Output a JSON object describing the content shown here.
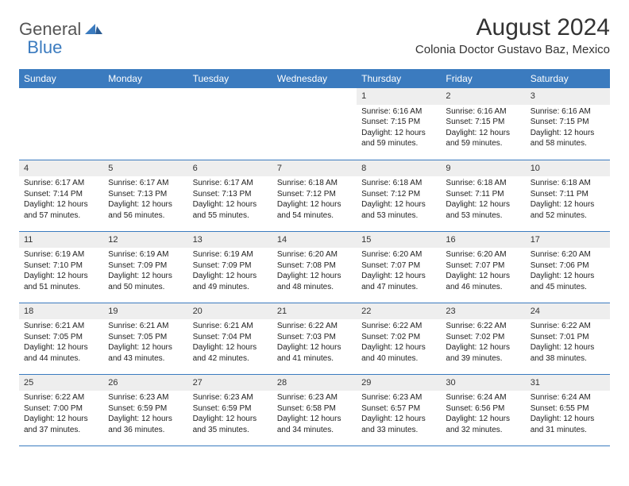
{
  "brand": {
    "general": "General",
    "blue": "Blue"
  },
  "title": "August 2024",
  "location": "Colonia Doctor Gustavo Baz, Mexico",
  "colors": {
    "header_bg": "#3b7bbf",
    "header_text": "#ffffff",
    "daynum_bg": "#eeeeee",
    "rule": "#3b7bbf",
    "logo_gray": "#555555",
    "logo_blue": "#3b7bbf"
  },
  "day_headers": [
    "Sunday",
    "Monday",
    "Tuesday",
    "Wednesday",
    "Thursday",
    "Friday",
    "Saturday"
  ],
  "weeks": [
    [
      {
        "n": "",
        "sr": "",
        "ss": "",
        "dl": ""
      },
      {
        "n": "",
        "sr": "",
        "ss": "",
        "dl": ""
      },
      {
        "n": "",
        "sr": "",
        "ss": "",
        "dl": ""
      },
      {
        "n": "",
        "sr": "",
        "ss": "",
        "dl": ""
      },
      {
        "n": "1",
        "sr": "Sunrise: 6:16 AM",
        "ss": "Sunset: 7:15 PM",
        "dl": "Daylight: 12 hours and 59 minutes."
      },
      {
        "n": "2",
        "sr": "Sunrise: 6:16 AM",
        "ss": "Sunset: 7:15 PM",
        "dl": "Daylight: 12 hours and 59 minutes."
      },
      {
        "n": "3",
        "sr": "Sunrise: 6:16 AM",
        "ss": "Sunset: 7:15 PM",
        "dl": "Daylight: 12 hours and 58 minutes."
      }
    ],
    [
      {
        "n": "4",
        "sr": "Sunrise: 6:17 AM",
        "ss": "Sunset: 7:14 PM",
        "dl": "Daylight: 12 hours and 57 minutes."
      },
      {
        "n": "5",
        "sr": "Sunrise: 6:17 AM",
        "ss": "Sunset: 7:13 PM",
        "dl": "Daylight: 12 hours and 56 minutes."
      },
      {
        "n": "6",
        "sr": "Sunrise: 6:17 AM",
        "ss": "Sunset: 7:13 PM",
        "dl": "Daylight: 12 hours and 55 minutes."
      },
      {
        "n": "7",
        "sr": "Sunrise: 6:18 AM",
        "ss": "Sunset: 7:12 PM",
        "dl": "Daylight: 12 hours and 54 minutes."
      },
      {
        "n": "8",
        "sr": "Sunrise: 6:18 AM",
        "ss": "Sunset: 7:12 PM",
        "dl": "Daylight: 12 hours and 53 minutes."
      },
      {
        "n": "9",
        "sr": "Sunrise: 6:18 AM",
        "ss": "Sunset: 7:11 PM",
        "dl": "Daylight: 12 hours and 53 minutes."
      },
      {
        "n": "10",
        "sr": "Sunrise: 6:18 AM",
        "ss": "Sunset: 7:11 PM",
        "dl": "Daylight: 12 hours and 52 minutes."
      }
    ],
    [
      {
        "n": "11",
        "sr": "Sunrise: 6:19 AM",
        "ss": "Sunset: 7:10 PM",
        "dl": "Daylight: 12 hours and 51 minutes."
      },
      {
        "n": "12",
        "sr": "Sunrise: 6:19 AM",
        "ss": "Sunset: 7:09 PM",
        "dl": "Daylight: 12 hours and 50 minutes."
      },
      {
        "n": "13",
        "sr": "Sunrise: 6:19 AM",
        "ss": "Sunset: 7:09 PM",
        "dl": "Daylight: 12 hours and 49 minutes."
      },
      {
        "n": "14",
        "sr": "Sunrise: 6:20 AM",
        "ss": "Sunset: 7:08 PM",
        "dl": "Daylight: 12 hours and 48 minutes."
      },
      {
        "n": "15",
        "sr": "Sunrise: 6:20 AM",
        "ss": "Sunset: 7:07 PM",
        "dl": "Daylight: 12 hours and 47 minutes."
      },
      {
        "n": "16",
        "sr": "Sunrise: 6:20 AM",
        "ss": "Sunset: 7:07 PM",
        "dl": "Daylight: 12 hours and 46 minutes."
      },
      {
        "n": "17",
        "sr": "Sunrise: 6:20 AM",
        "ss": "Sunset: 7:06 PM",
        "dl": "Daylight: 12 hours and 45 minutes."
      }
    ],
    [
      {
        "n": "18",
        "sr": "Sunrise: 6:21 AM",
        "ss": "Sunset: 7:05 PM",
        "dl": "Daylight: 12 hours and 44 minutes."
      },
      {
        "n": "19",
        "sr": "Sunrise: 6:21 AM",
        "ss": "Sunset: 7:05 PM",
        "dl": "Daylight: 12 hours and 43 minutes."
      },
      {
        "n": "20",
        "sr": "Sunrise: 6:21 AM",
        "ss": "Sunset: 7:04 PM",
        "dl": "Daylight: 12 hours and 42 minutes."
      },
      {
        "n": "21",
        "sr": "Sunrise: 6:22 AM",
        "ss": "Sunset: 7:03 PM",
        "dl": "Daylight: 12 hours and 41 minutes."
      },
      {
        "n": "22",
        "sr": "Sunrise: 6:22 AM",
        "ss": "Sunset: 7:02 PM",
        "dl": "Daylight: 12 hours and 40 minutes."
      },
      {
        "n": "23",
        "sr": "Sunrise: 6:22 AM",
        "ss": "Sunset: 7:02 PM",
        "dl": "Daylight: 12 hours and 39 minutes."
      },
      {
        "n": "24",
        "sr": "Sunrise: 6:22 AM",
        "ss": "Sunset: 7:01 PM",
        "dl": "Daylight: 12 hours and 38 minutes."
      }
    ],
    [
      {
        "n": "25",
        "sr": "Sunrise: 6:22 AM",
        "ss": "Sunset: 7:00 PM",
        "dl": "Daylight: 12 hours and 37 minutes."
      },
      {
        "n": "26",
        "sr": "Sunrise: 6:23 AM",
        "ss": "Sunset: 6:59 PM",
        "dl": "Daylight: 12 hours and 36 minutes."
      },
      {
        "n": "27",
        "sr": "Sunrise: 6:23 AM",
        "ss": "Sunset: 6:59 PM",
        "dl": "Daylight: 12 hours and 35 minutes."
      },
      {
        "n": "28",
        "sr": "Sunrise: 6:23 AM",
        "ss": "Sunset: 6:58 PM",
        "dl": "Daylight: 12 hours and 34 minutes."
      },
      {
        "n": "29",
        "sr": "Sunrise: 6:23 AM",
        "ss": "Sunset: 6:57 PM",
        "dl": "Daylight: 12 hours and 33 minutes."
      },
      {
        "n": "30",
        "sr": "Sunrise: 6:24 AM",
        "ss": "Sunset: 6:56 PM",
        "dl": "Daylight: 12 hours and 32 minutes."
      },
      {
        "n": "31",
        "sr": "Sunrise: 6:24 AM",
        "ss": "Sunset: 6:55 PM",
        "dl": "Daylight: 12 hours and 31 minutes."
      }
    ]
  ]
}
